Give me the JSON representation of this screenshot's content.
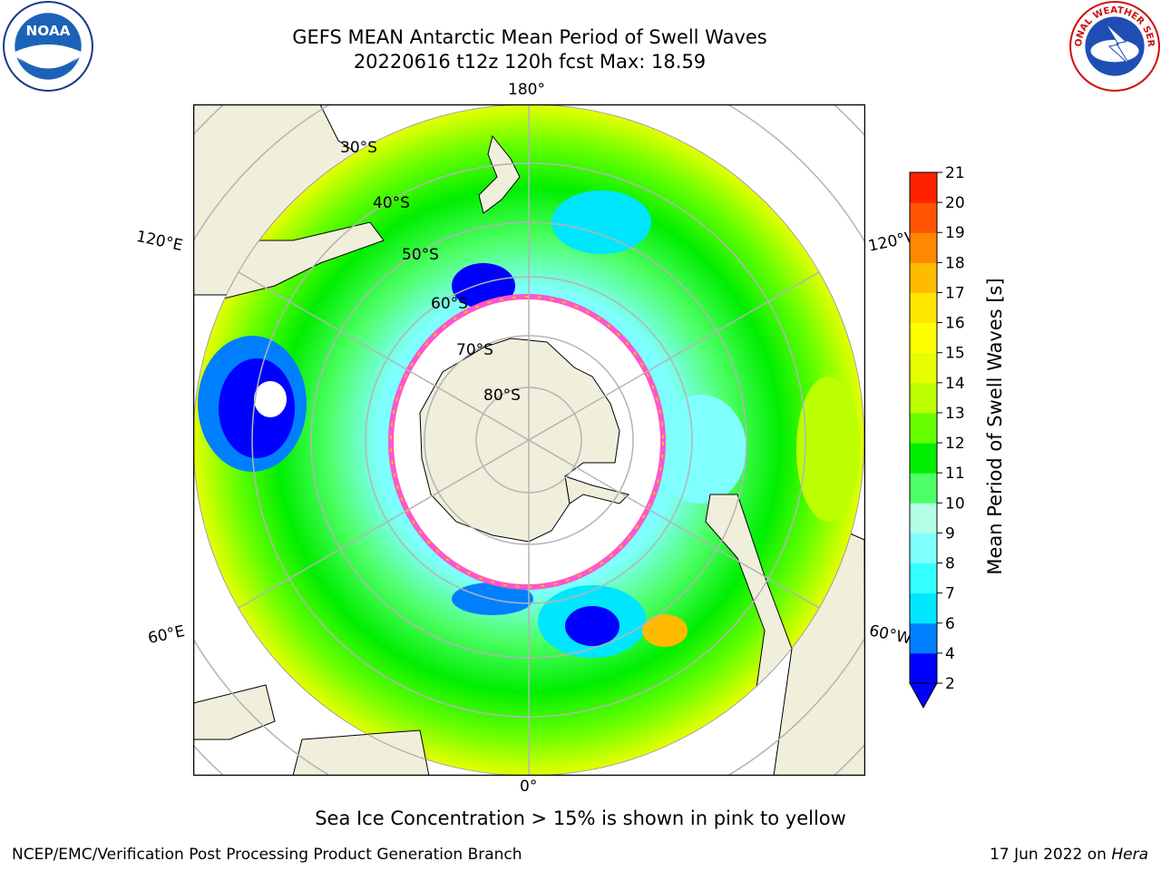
{
  "title": {
    "line1": "GEFS MEAN Antarctic Mean Period of Swell Waves",
    "line2": "20220616 t12z 120h fcst   Max: 18.59"
  },
  "logos": {
    "left": {
      "name": "noaa-logo",
      "text": "NOAA"
    },
    "right": {
      "name": "nws-logo",
      "text": "NATIONAL WEATHER SERVICE"
    }
  },
  "map": {
    "projection": "south-polar-stereographic",
    "longitude_labels": {
      "top": "180°",
      "bottom": "0°",
      "upper_left": "120°E",
      "upper_right": "120°W",
      "lower_left": "60°E",
      "lower_right": "60°W"
    },
    "latitude_labels": [
      "30°S",
      "40°S",
      "50°S",
      "60°S",
      "70°S",
      "80°S"
    ],
    "colors": {
      "land": "#efefdc",
      "sea_ice": "#ffffff",
      "ice_edge": "#ff55cc",
      "gridline": "#b4b4b4"
    }
  },
  "colorbar": {
    "label": "Mean Period of Swell Waves [s]",
    "ticks": [
      2,
      4,
      6,
      7,
      8,
      9,
      10,
      11,
      12,
      13,
      14,
      15,
      16,
      17,
      18,
      19,
      20,
      21
    ],
    "colors": [
      "#0000ff",
      "#0080ff",
      "#00e6ff",
      "#33ffff",
      "#80ffff",
      "#b3ffe6",
      "#4dff66",
      "#00ee00",
      "#66ff00",
      "#bbff00",
      "#e6ff00",
      "#ffff00",
      "#ffe600",
      "#ffbb00",
      "#ff8800",
      "#ff5500",
      "#ff2200",
      "#ff0000"
    ],
    "extend_color": "#0000ff"
  },
  "note": "Sea Ice Concentration > 15% is shown in pink to yellow",
  "footer": {
    "left": "NCEP/EMC/Verification Post Processing Product Generation Branch",
    "right_prefix": "17 Jun 2022 on ",
    "right_italic": "Hera"
  }
}
